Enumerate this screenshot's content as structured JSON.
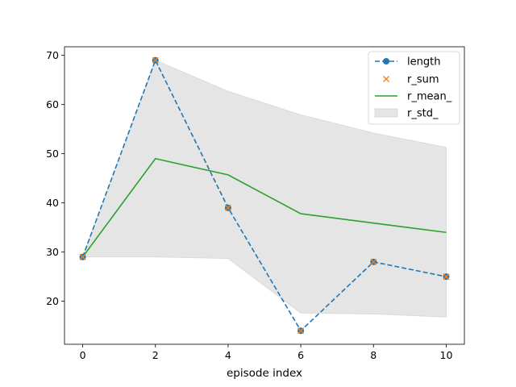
{
  "chart_data": {
    "type": "line",
    "title": "",
    "xlabel": "episode index",
    "ylabel": "",
    "xlim": [
      -0.5,
      10.5
    ],
    "ylim": [
      11.25,
      71.75
    ],
    "xticks": [
      0,
      2,
      4,
      6,
      8,
      10
    ],
    "yticks": [
      20,
      30,
      40,
      50,
      60,
      70
    ],
    "grid": false,
    "legend_position": "top-right",
    "x": [
      0,
      2,
      4,
      6,
      8,
      10
    ],
    "series": [
      {
        "name": "length",
        "style": "dashed line with circle markers",
        "color": "#1f77b4",
        "values": [
          29,
          69,
          39,
          14,
          28,
          25
        ]
      },
      {
        "name": "r_sum",
        "style": "x markers",
        "color": "#ff7f0e",
        "values": [
          29,
          69,
          39,
          14,
          28,
          25
        ]
      },
      {
        "name": "r_mean_",
        "style": "solid line",
        "color": "#2ca02c",
        "values": [
          29,
          49,
          45.7,
          37.8,
          35.9,
          34
        ]
      },
      {
        "name": "r_std_",
        "style": "shaded band",
        "color": "#e5e5e5",
        "lower": [
          29,
          29,
          28.7,
          17.6,
          17.4,
          16.8
        ],
        "upper": [
          29,
          69,
          62.7,
          57.9,
          54.2,
          51.3
        ]
      }
    ]
  }
}
